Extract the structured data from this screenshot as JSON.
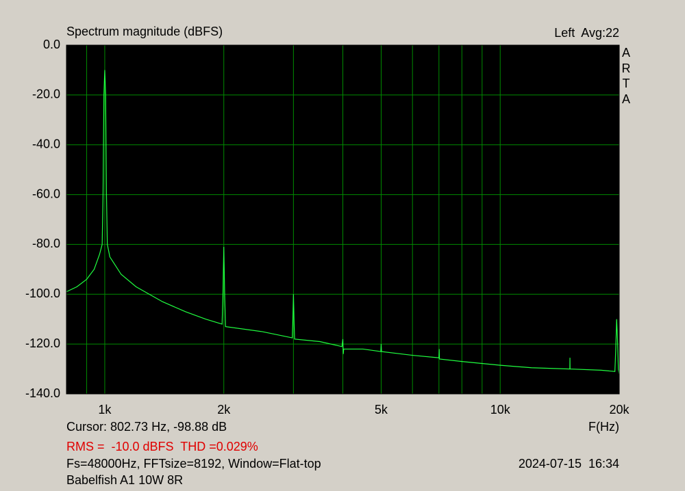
{
  "chart_data": {
    "type": "line",
    "title": "Spectrum magnitude (dBFS)",
    "channel_label": "Left  Avg:22",
    "brand": "ARTA",
    "cursor_text": "Cursor: 802.73 Hz, -98.88 dB",
    "x_axis_label": "F(Hz)",
    "rms_text": "RMS =  -10.0 dBFS  THD =0.029%",
    "settings_text": "Fs=48000Hz, FFTsize=8192, Window=Flat-top",
    "timestamp": "2024-07-15  16:34",
    "device_text": "Babelfish A1 10W 8R",
    "xscale": "log",
    "xlim": [
      800,
      20000
    ],
    "xticks": [
      {
        "value": 1000,
        "label": "1k"
      },
      {
        "value": 2000,
        "label": "2k"
      },
      {
        "value": 5000,
        "label": "5k"
      },
      {
        "value": 10000,
        "label": "10k"
      },
      {
        "value": 20000,
        "label": "20k"
      }
    ],
    "xminor": [
      900,
      3000,
      4000,
      6000,
      7000,
      8000,
      9000
    ],
    "ylim": [
      -140,
      0
    ],
    "yticks": [
      {
        "value": 0,
        "label": "0.0"
      },
      {
        "value": -20,
        "label": "-20.0"
      },
      {
        "value": -40,
        "label": "-40.0"
      },
      {
        "value": -60,
        "label": "-60.0"
      },
      {
        "value": -80,
        "label": "-80.0"
      },
      {
        "value": -100,
        "label": "-100.0"
      },
      {
        "value": -120,
        "label": "-120.0"
      },
      {
        "value": -140,
        "label": "-140.0"
      }
    ],
    "grid": true,
    "background": "#000000",
    "grid_color": "#008c00",
    "color": "#20ff40",
    "x": [
      800,
      850,
      900,
      940,
      970,
      985,
      990,
      995,
      1000,
      1005,
      1010,
      1015,
      1030,
      1100,
      1200,
      1400,
      1600,
      1800,
      1980,
      1990,
      2000,
      2010,
      2020,
      2500,
      2980,
      2990,
      3000,
      3010,
      3020,
      3500,
      3980,
      4000,
      4010,
      4020,
      4500,
      4990,
      5000,
      5010,
      6000,
      7000,
      7010,
      7020,
      8000,
      10000,
      12000,
      15000,
      15010,
      15020,
      18000,
      19500,
      19600,
      19700,
      19800,
      19900,
      20000
    ],
    "values": [
      -99,
      -97,
      -94,
      -90,
      -84,
      -80,
      -60,
      -20,
      -10,
      -20,
      -60,
      -80,
      -85,
      -92,
      -97,
      -103,
      -107,
      -110,
      -112,
      -100,
      -81,
      -100,
      -113,
      -115,
      -117.5,
      -110,
      -100,
      -110,
      -118,
      -119,
      -121,
      -118,
      -124,
      -122,
      -122,
      -123,
      -120,
      -123,
      -124.5,
      -125.5,
      -122,
      -126,
      -127,
      -128.5,
      -129.5,
      -130,
      -125.5,
      -130,
      -130.5,
      -131,
      -122,
      -110,
      -118,
      -130,
      -132
    ]
  }
}
